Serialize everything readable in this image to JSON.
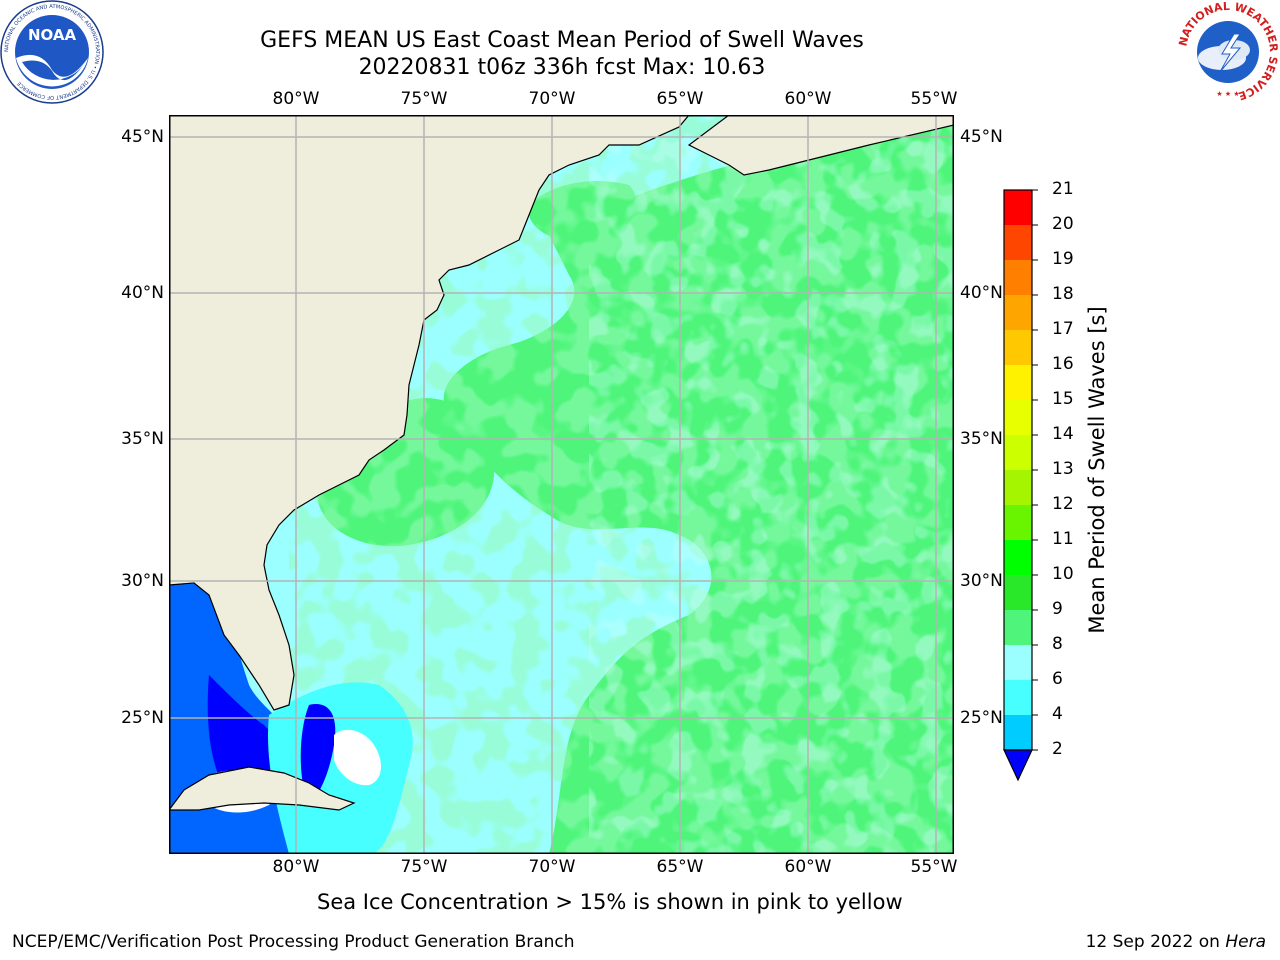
{
  "title": {
    "line1": "GEFS MEAN US East Coast Mean Period of Swell Waves",
    "line2": "20220831 t06z 336h fcst   Max: 10.63"
  },
  "map": {
    "lon_labels": [
      "80°W",
      "75°W",
      "70°W",
      "65°W",
      "60°W",
      "55°W"
    ],
    "lat_labels": [
      "45°N",
      "40°N",
      "35°N",
      "30°N",
      "25°N"
    ],
    "extent": {
      "lon_min": -85,
      "lon_max": -54.2,
      "lat_min": 20.5,
      "lat_max": 45.8
    },
    "colors": {
      "land": "#efeddc",
      "coast": "#000000",
      "grid": "#b4b4b4",
      "frame": "#000000"
    }
  },
  "colorbar": {
    "label": "Mean Period of Swell Waves [s]",
    "ticks": [
      "2",
      "4",
      "6",
      "8",
      "9",
      "10",
      "11",
      "12",
      "13",
      "14",
      "15",
      "16",
      "17",
      "18",
      "19",
      "20",
      "21"
    ],
    "colors": [
      "#0066ff",
      "#00ccff",
      "#47ffff",
      "#9bffff",
      "#4ef57a",
      "#29e829",
      "#00ff00",
      "#69f500",
      "#a6f500",
      "#ccff00",
      "#e8ff00",
      "#fff200",
      "#ffc800",
      "#ffa500",
      "#ff8000",
      "#ff4600",
      "#ff0000"
    ],
    "extend_color": "#0000ff"
  },
  "caption": "Sea Ice Concentration > 15% is shown in pink to yellow",
  "footer": {
    "left": "NCEP/EMC/Verification Post Processing Product Generation Branch",
    "date": "12 Sep 2022 on ",
    "host": "Hera"
  },
  "logos": {
    "noaa_text": "NOAA",
    "noaa_ring": "NATIONAL OCEANIC AND ATMOSPHERIC ADMINISTRATION • U.S. DEPARTMENT OF COMMERCE",
    "nws_ring": "NATIONAL WEATHER SERVICE"
  }
}
